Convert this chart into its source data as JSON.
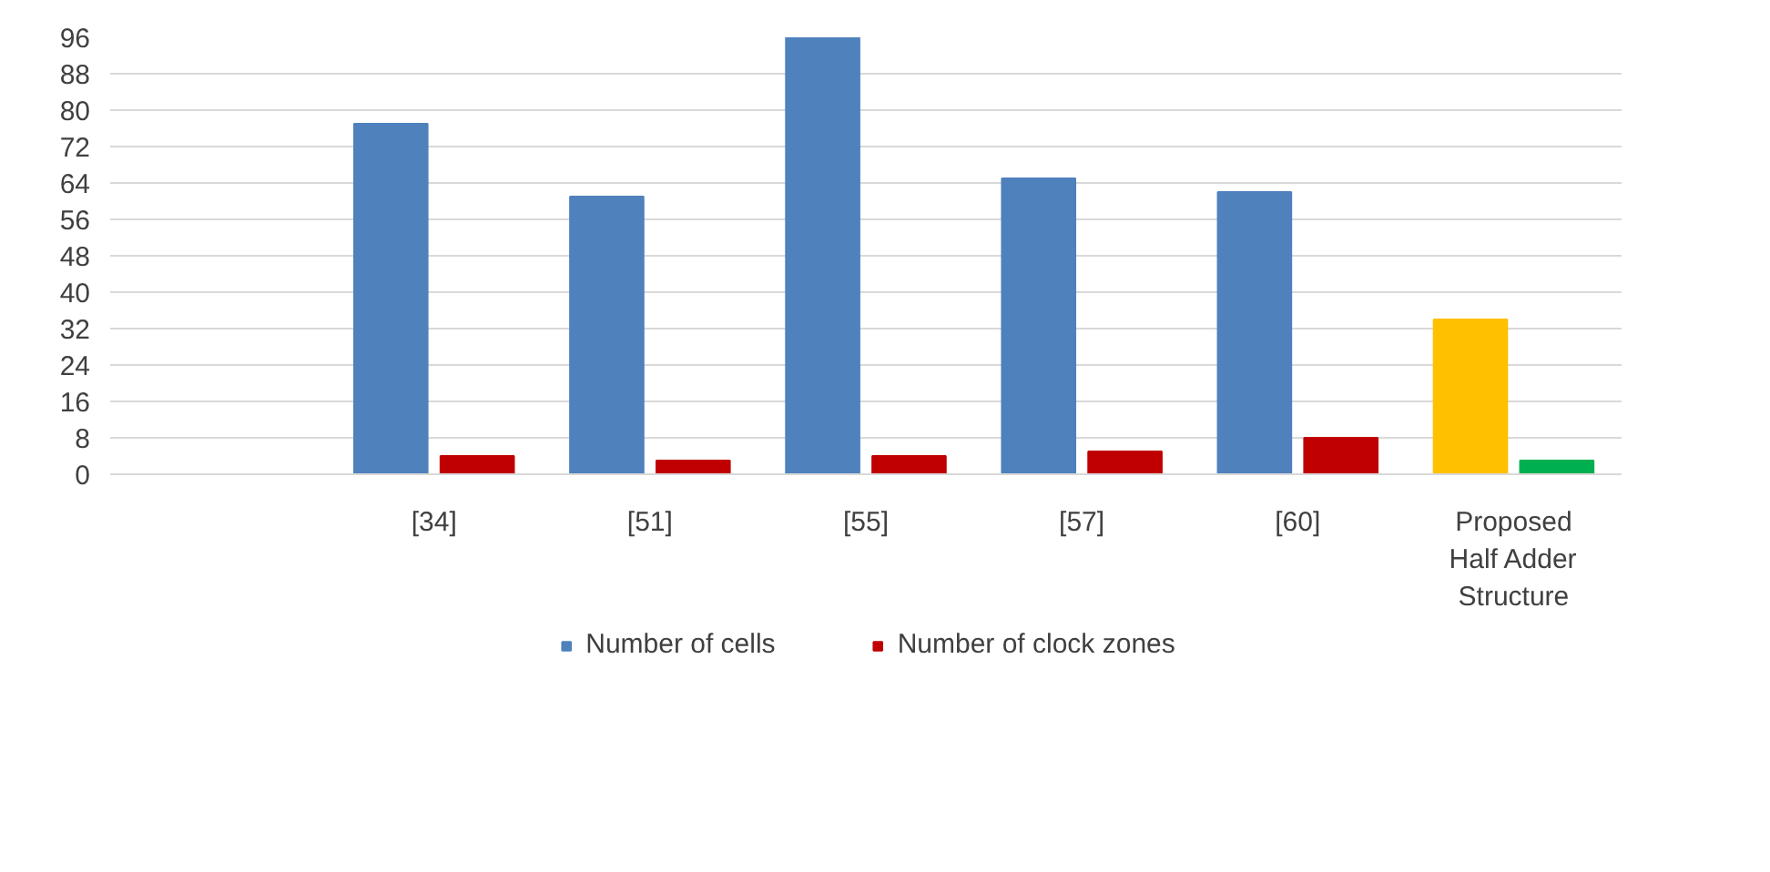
{
  "chart_data": {
    "type": "bar",
    "categories": [
      null,
      "[34]",
      "[51]",
      "[55]",
      "[57]",
      "[60]",
      "Proposed Half Adder Structure"
    ],
    "series": [
      {
        "name": "Number of cells",
        "color": "#4f81bd",
        "colors": [
          "#4f81bd",
          "#4f81bd",
          "#4f81bd",
          "#4f81bd",
          "#4f81bd",
          "#4f81bd",
          "#ffc000"
        ],
        "values": [
          null,
          77,
          61,
          96,
          65,
          62,
          34
        ]
      },
      {
        "name": "Number of clock zones",
        "color": "#c00000",
        "colors": [
          "#c00000",
          "#c00000",
          "#c00000",
          "#c00000",
          "#c00000",
          "#c00000",
          "#00b050"
        ],
        "values": [
          null,
          4,
          3,
          4,
          5,
          8,
          3
        ]
      }
    ],
    "ylim": [
      0,
      96
    ],
    "yticks": [
      0,
      8,
      16,
      24,
      32,
      40,
      48,
      56,
      64,
      72,
      80,
      88,
      96
    ],
    "grid": "y",
    "legend": "bottom"
  }
}
